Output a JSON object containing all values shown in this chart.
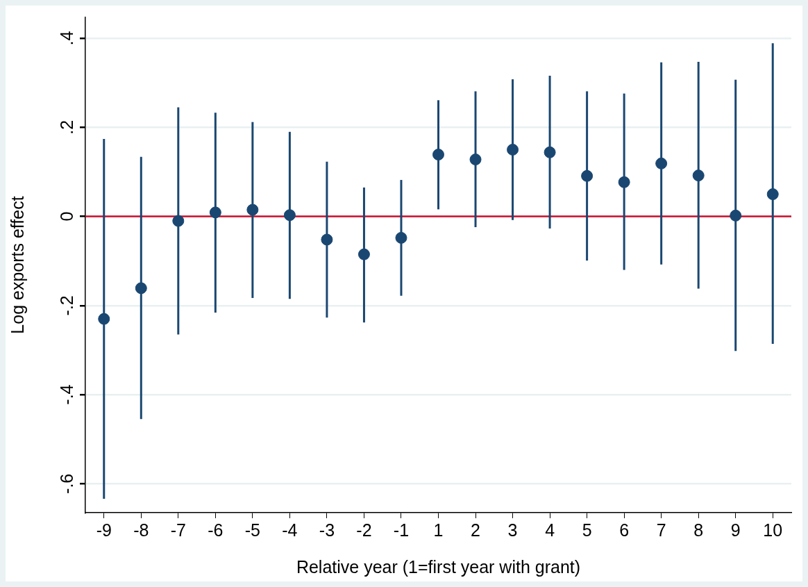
{
  "chart_data": {
    "type": "scatter",
    "xlabel": "Relative year (1=first year with grant)",
    "ylabel": "Log exports effect",
    "categories": [
      "-9",
      "-8",
      "-7",
      "-6",
      "-5",
      "-4",
      "-3",
      "-2",
      "-1",
      "1",
      "2",
      "3",
      "4",
      "5",
      "6",
      "7",
      "8",
      "9",
      "10"
    ],
    "series": [
      {
        "color": "#1a4771",
        "values": [
          -0.23,
          -0.161,
          -0.01,
          0.009,
          0.015,
          0.003,
          -0.052,
          -0.085,
          -0.048,
          0.139,
          0.128,
          0.15,
          0.144,
          0.091,
          0.077,
          0.119,
          0.092,
          0.002,
          0.05
        ],
        "errors": [
          [
            -0.634,
            0.174
          ],
          [
            -0.455,
            0.134
          ],
          [
            -0.265,
            0.245
          ],
          [
            -0.216,
            0.233
          ],
          [
            -0.183,
            0.212
          ],
          [
            -0.185,
            0.19
          ],
          [
            -0.227,
            0.123
          ],
          [
            -0.238,
            0.065
          ],
          [
            -0.178,
            0.082
          ],
          [
            0.016,
            0.261
          ],
          [
            -0.024,
            0.281
          ],
          [
            -0.008,
            0.308
          ],
          [
            -0.027,
            0.316
          ],
          [
            -0.099,
            0.281
          ],
          [
            -0.12,
            0.276
          ],
          [
            -0.108,
            0.346
          ],
          [
            -0.162,
            0.347
          ],
          [
            -0.302,
            0.307
          ],
          [
            -0.286,
            0.389
          ]
        ]
      }
    ],
    "ylim": [
      -0.665,
      0.447
    ],
    "yticks": [
      {
        "value": -0.6,
        "label": "-.6"
      },
      {
        "value": -0.4,
        "label": "-.4"
      },
      {
        "value": -0.2,
        "label": "-.2"
      },
      0,
      {
        "value": 0.2,
        "label": ".2"
      },
      {
        "value": 0.4,
        "label": ".4"
      }
    ],
    "ref_lines": [
      {
        "axis": "y",
        "value": 0,
        "color": "#c8102e"
      }
    ],
    "grid": "y",
    "marker": "circle",
    "legend": false
  }
}
